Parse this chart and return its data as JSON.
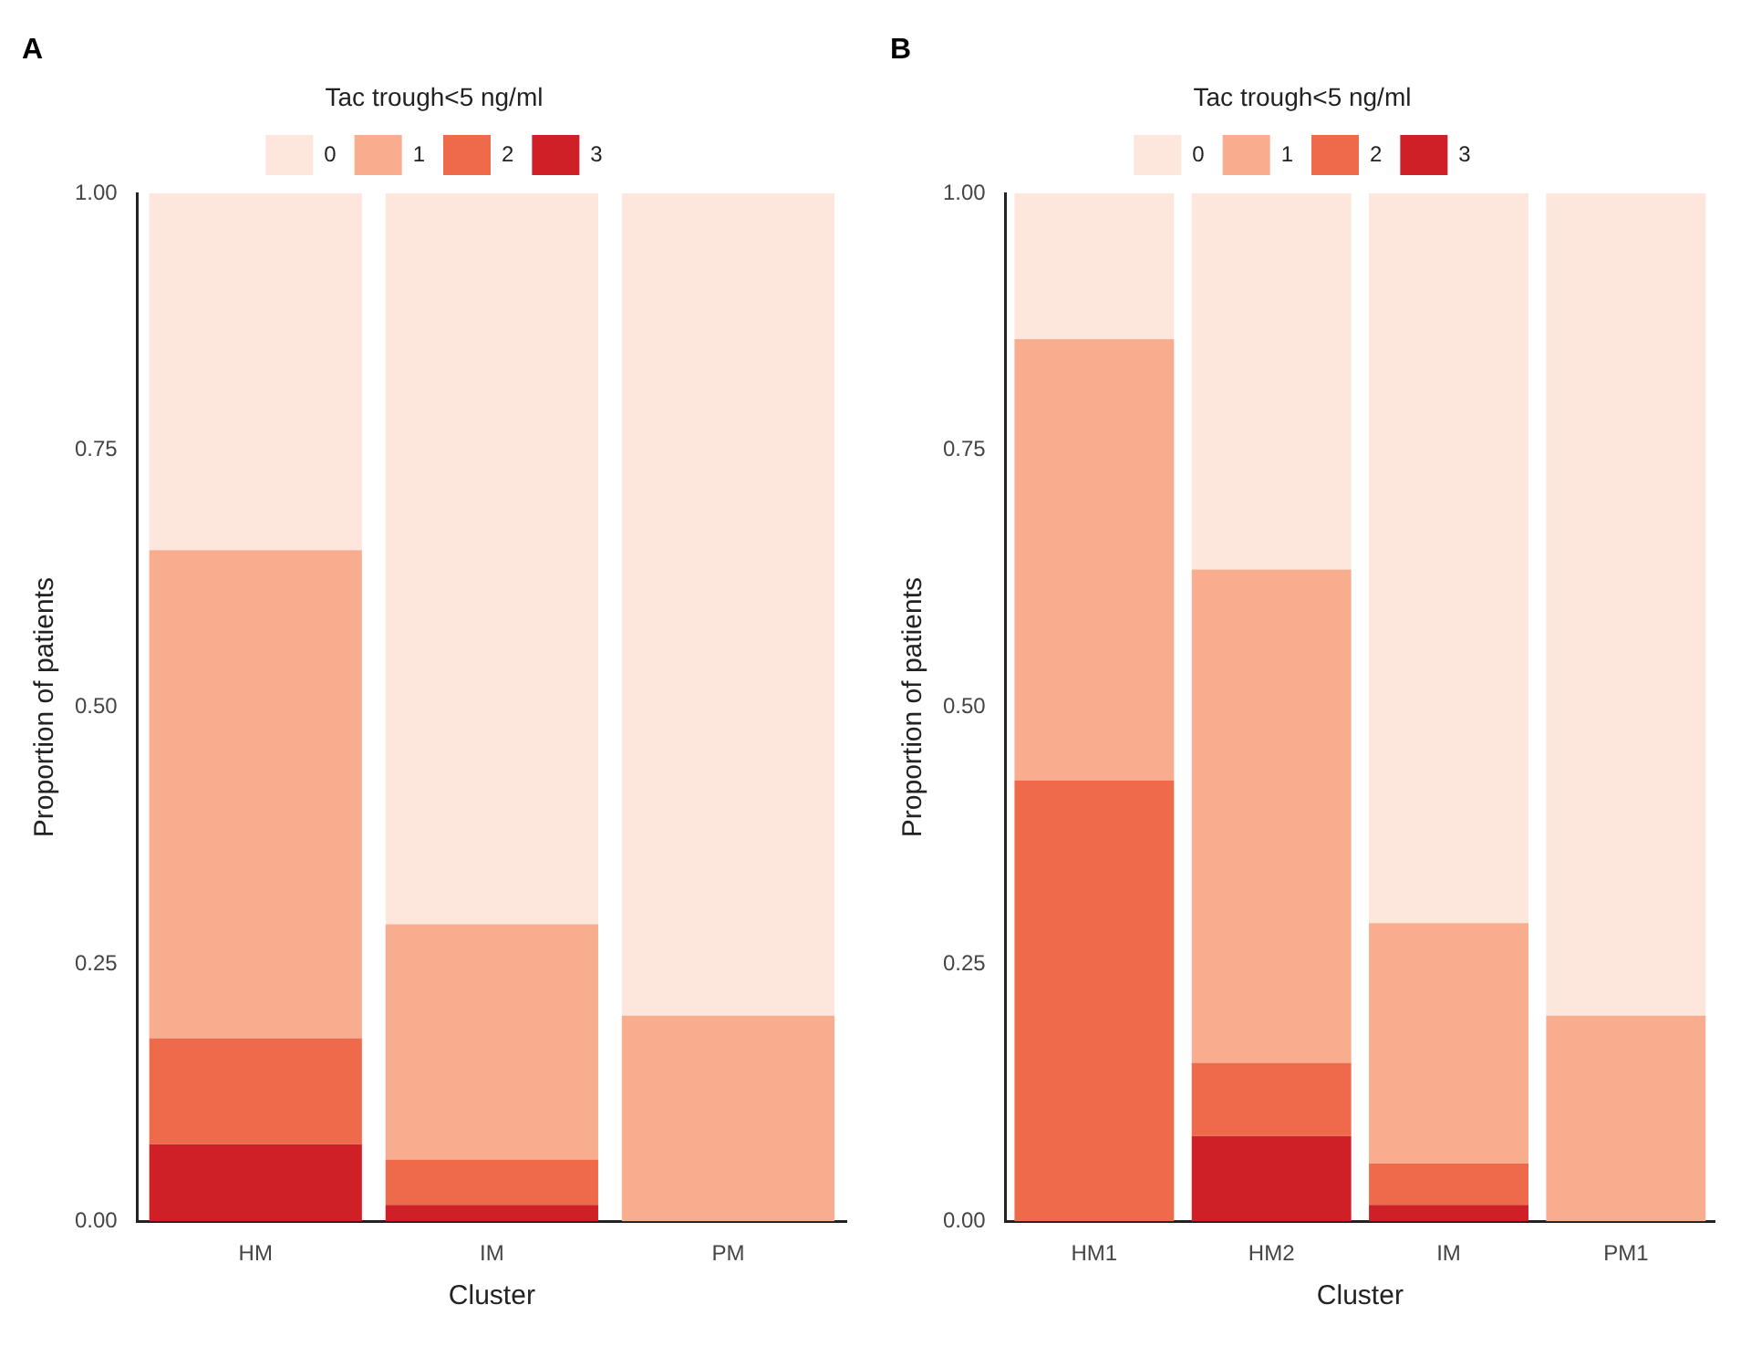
{
  "chart_data": [
    {
      "type": "bar",
      "title": "A",
      "stacked": true,
      "legend": "top",
      "legend_title": "Tac trough<5 ng/ml",
      "xlabel": "Cluster",
      "ylabel": "Proportion of patients",
      "categories": [
        "HM",
        "IM",
        "PM"
      ],
      "ylim": [
        0,
        1
      ],
      "yticks": [
        {
          "value": 0,
          "label": "0.00"
        },
        {
          "value": 0.25,
          "label": "0.25"
        },
        {
          "value": 0.5,
          "label": "0.50"
        },
        {
          "value": 0.75,
          "label": "0.75"
        },
        {
          "value": 1,
          "label": "1.00"
        }
      ],
      "grid": false,
      "series": [
        {
          "name": "3",
          "color": "#cf2027",
          "values": [
            0.075,
            0.016,
            0
          ]
        },
        {
          "name": "2",
          "color": "#ef6a4b",
          "values": [
            0.103,
            0.044,
            0
          ]
        },
        {
          "name": "1",
          "color": "#f9ad8f",
          "values": [
            0.475,
            0.229,
            0.2
          ]
        },
        {
          "name": "0",
          "color": "#fde6db",
          "values": [
            0.347,
            0.711,
            0.8
          ]
        }
      ]
    },
    {
      "type": "bar",
      "title": "B",
      "stacked": true,
      "legend": "top",
      "legend_title": "Tac trough<5 ng/ml",
      "xlabel": "Cluster",
      "ylabel": "Proportion of patients",
      "categories": [
        "HM1",
        "HM2",
        "IM",
        "PM1"
      ],
      "ylim": [
        0,
        1
      ],
      "yticks": [
        {
          "value": 0,
          "label": "0.00"
        },
        {
          "value": 0.25,
          "label": "0.25"
        },
        {
          "value": 0.5,
          "label": "0.50"
        },
        {
          "value": 0.75,
          "label": "0.75"
        },
        {
          "value": 1,
          "label": "1.00"
        }
      ],
      "grid": false,
      "series": [
        {
          "name": "3",
          "color": "#cf2027",
          "values": [
            0,
            0.083,
            0.016,
            0
          ]
        },
        {
          "name": "2",
          "color": "#ef6a4b",
          "values": [
            0.429,
            0.071,
            0.04,
            0
          ]
        },
        {
          "name": "1",
          "color": "#f9ad8f",
          "values": [
            0.429,
            0.48,
            0.234,
            0.2
          ]
        },
        {
          "name": "0",
          "color": "#fde6db",
          "values": [
            0.142,
            0.366,
            0.71,
            0.8
          ]
        }
      ]
    }
  ]
}
